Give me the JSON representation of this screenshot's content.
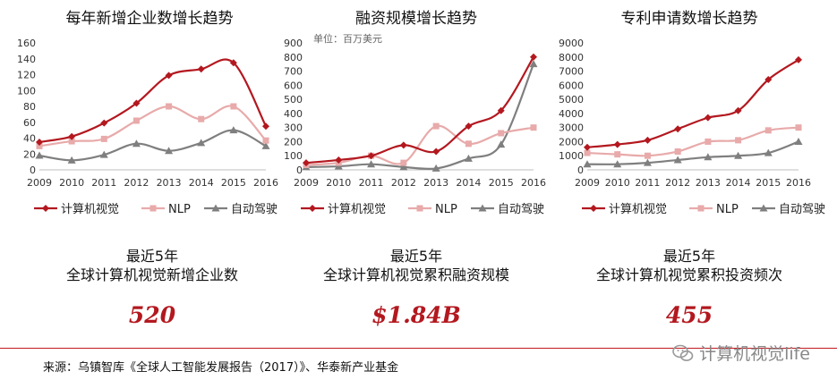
{
  "colors": {
    "cv": "#b3181f",
    "nlp": "#e8aaaa",
    "ad": "#7f7f7f",
    "accent": "#c0191f"
  },
  "chart_data": [
    {
      "type": "line",
      "title": "每年新增企业数增长趋势",
      "unit_note": "",
      "x": [
        "2009",
        "2010",
        "2011",
        "2012",
        "2013",
        "2014",
        "2015",
        "2016"
      ],
      "ylim": [
        0,
        160
      ],
      "yticks": [
        0,
        20,
        40,
        60,
        80,
        100,
        120,
        140,
        160
      ],
      "series": [
        {
          "name": "计算机视觉",
          "key": "cv",
          "marker": "diamond",
          "values": [
            35,
            42,
            59,
            84,
            119,
            127,
            135,
            55
          ]
        },
        {
          "name": "NLP",
          "key": "nlp",
          "marker": "square",
          "values": [
            30,
            36,
            39,
            62,
            80,
            64,
            80,
            37
          ]
        },
        {
          "name": "自动驾驶",
          "key": "ad",
          "marker": "triangle",
          "values": [
            18,
            12,
            19,
            33,
            24,
            34,
            50,
            30
          ]
        }
      ]
    },
    {
      "type": "line",
      "title": "融资规模增长趋势",
      "unit_note": "单位：百万美元",
      "x": [
        "2009",
        "2010",
        "2011",
        "2012",
        "2013",
        "2014",
        "2015",
        "2016"
      ],
      "ylim": [
        0,
        900
      ],
      "yticks": [
        0,
        100,
        200,
        300,
        400,
        500,
        600,
        700,
        800,
        900
      ],
      "series": [
        {
          "name": "计算机视觉",
          "key": "cv",
          "marker": "diamond",
          "values": [
            50,
            70,
            100,
            175,
            130,
            310,
            420,
            800
          ]
        },
        {
          "name": "NLP",
          "key": "nlp",
          "marker": "square",
          "values": [
            35,
            50,
            100,
            50,
            310,
            185,
            260,
            300
          ]
        },
        {
          "name": "自动驾驶",
          "key": "ad",
          "marker": "triangle",
          "values": [
            20,
            25,
            40,
            20,
            10,
            80,
            180,
            750
          ]
        }
      ]
    },
    {
      "type": "line",
      "title": "专利申请数增长趋势",
      "unit_note": "",
      "x": [
        "2009",
        "2010",
        "2011",
        "2012",
        "2013",
        "2014",
        "2015",
        "2016"
      ],
      "ylim": [
        0,
        9000
      ],
      "yticks": [
        0,
        1000,
        2000,
        3000,
        4000,
        5000,
        6000,
        7000,
        8000,
        9000
      ],
      "series": [
        {
          "name": "计算机视觉",
          "key": "cv",
          "marker": "diamond",
          "values": [
            1600,
            1800,
            2100,
            2900,
            3700,
            4200,
            6400,
            7800
          ]
        },
        {
          "name": "NLP",
          "key": "nlp",
          "marker": "square",
          "values": [
            1200,
            1100,
            1000,
            1300,
            2000,
            2100,
            2800,
            3000
          ]
        },
        {
          "name": "自动驾驶",
          "key": "ad",
          "marker": "triangle",
          "values": [
            400,
            400,
            500,
            700,
            900,
            1000,
            1200,
            2000
          ]
        }
      ]
    }
  ],
  "stats": [
    {
      "line1": "最近5年",
      "line2": "全球计算机视觉新增企业数",
      "value": "520"
    },
    {
      "line1": "最近5年",
      "line2": "全球计算机视觉累积融资规模",
      "value": "$1.84B"
    },
    {
      "line1": "最近5年",
      "line2": "全球计算机视觉累积投资频次",
      "value": "455"
    }
  ],
  "footer": {
    "source": "来源：乌镇智库《全球人工智能发展报告（2017）》、华泰新产业基金",
    "watermark": "计算机视觉life"
  }
}
